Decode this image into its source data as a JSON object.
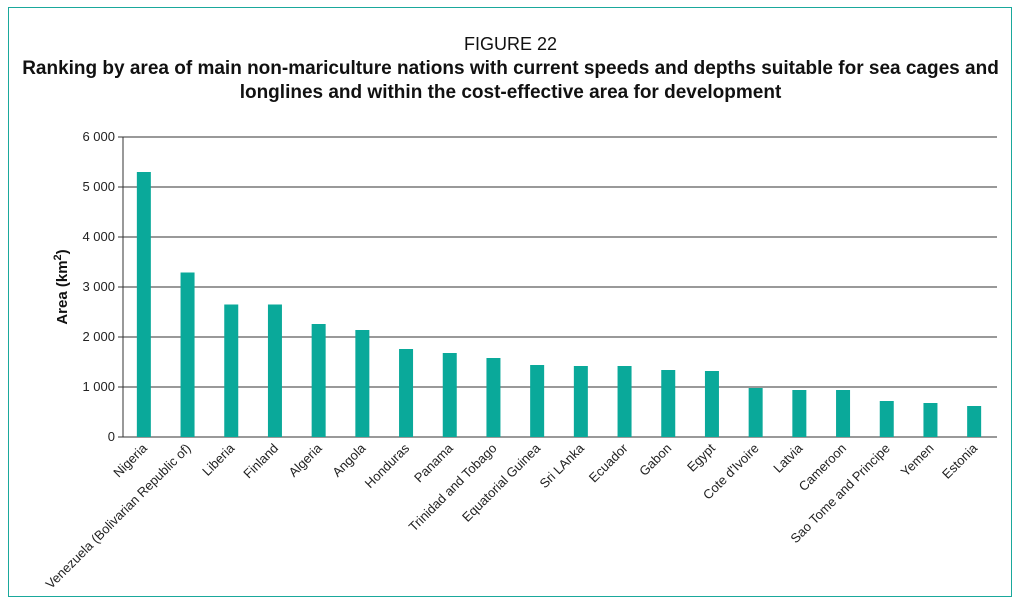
{
  "figure_label": "FIGURE 22",
  "colors": {
    "bar": "#0aa99a",
    "frame": "#1aa89c",
    "grid": "#333333"
  },
  "chart_data": {
    "type": "bar",
    "title": "Ranking by area of main non-mariculture nations with current speeds and depths suitable for sea cages and longlines and within the cost-effective area for development",
    "xlabel": "",
    "ylabel": "Area (km2)",
    "ylim": [
      0,
      6000
    ],
    "yticks": [
      "0",
      "1 000",
      "2 000",
      "3 000",
      "4 000",
      "5 000",
      "6 000"
    ],
    "grid": true,
    "categories": [
      "Nigeria",
      "Venezuela (Bolivarian Republic of)",
      "Liberia",
      "Finland",
      "Algeria",
      "Angola",
      "Honduras",
      "Panama",
      "Trinidad and Tobago",
      "Equatorial Guinea",
      "Sri LAnka",
      "Ecuador",
      "Gabon",
      "Egypt",
      "Cote d'Ivoire",
      "Latvia",
      "Cameroon",
      "Sao Tome and Principe",
      "Yemen",
      "Estonia"
    ],
    "values": [
      5300,
      3290,
      2650,
      2650,
      2260,
      2140,
      1760,
      1680,
      1580,
      1440,
      1420,
      1420,
      1340,
      1320,
      980,
      940,
      940,
      720,
      680,
      620
    ]
  }
}
